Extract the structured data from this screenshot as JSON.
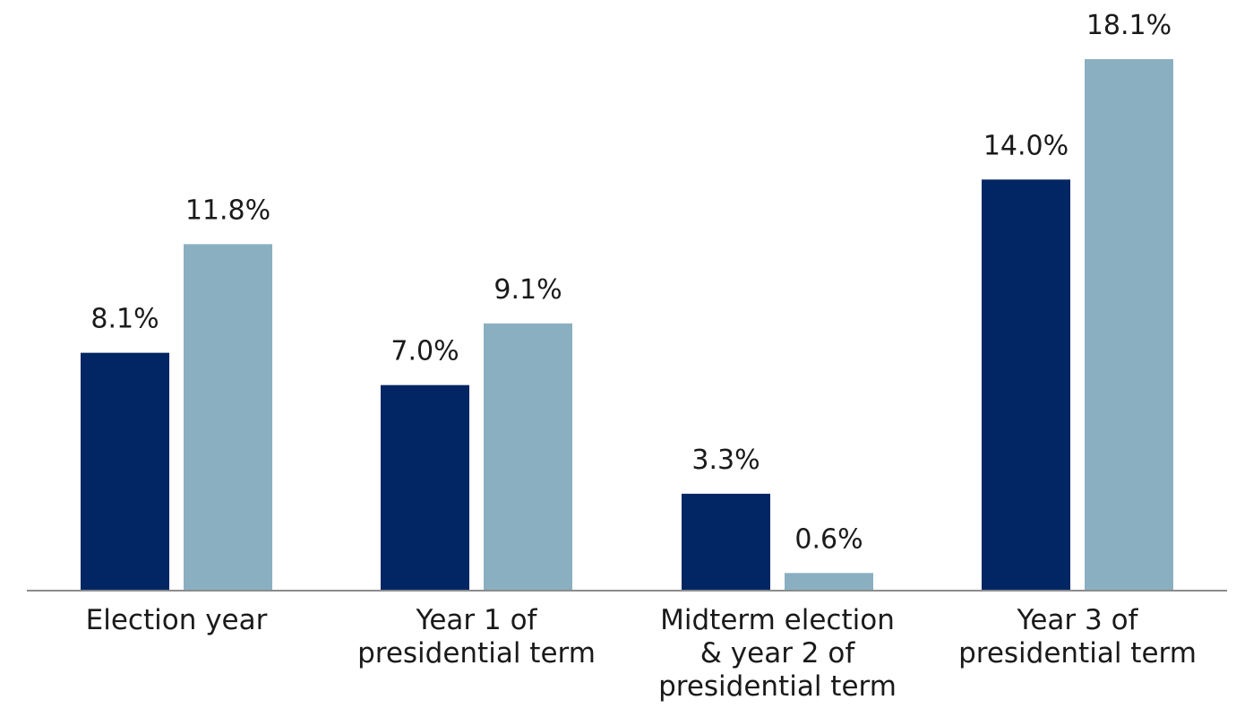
{
  "chart_data": {
    "type": "bar",
    "categories": [
      [
        "Election year"
      ],
      [
        "Year 1 of",
        "presidential term"
      ],
      [
        "Midterm election",
        "& year 2 of",
        "presidential term"
      ],
      [
        "Year 3 of",
        "presidential term"
      ]
    ],
    "series": [
      {
        "values": [
          8.1,
          7.0,
          3.3,
          14.0
        ],
        "labels": [
          "8.1%",
          "7.0%",
          "3.3%",
          "14.0%"
        ],
        "color": "#012663"
      },
      {
        "values": [
          11.8,
          9.1,
          0.6,
          18.1
        ],
        "labels": [
          "11.8%",
          "9.1%",
          "0.6%",
          "18.1%"
        ],
        "color": "#8aafc1"
      }
    ],
    "ylim": [
      0,
      18.1
    ],
    "grid": false,
    "legend": "none",
    "axis_color": "#8c8c8c"
  }
}
